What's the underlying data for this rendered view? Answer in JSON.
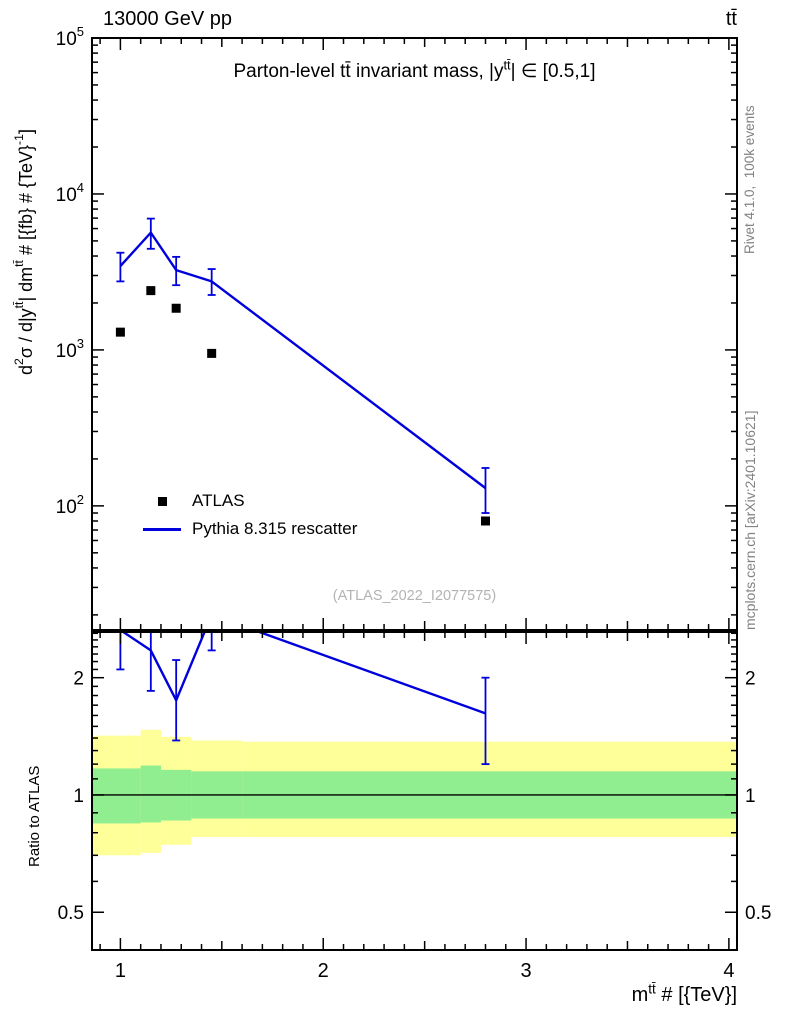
{
  "header": {
    "beam": "13000 GeV pp",
    "process": "tt̄"
  },
  "side_notes": {
    "top": "Rivet 4.1.0,  100k events",
    "bottom": "mcplots.cern.ch [arXiv:2401.10621]"
  },
  "watermark": "(ATLAS_2022_I2077575)",
  "legend": [
    {
      "label": "ATLAS",
      "marker": "square",
      "color": "#000000"
    },
    {
      "label": "Pythia 8.315 rescatter",
      "marker": "line",
      "color": "#0000dd"
    }
  ],
  "chart_data": [
    {
      "type": "line",
      "panel": "main",
      "title": "Parton-level tt̄ invariant mass, |y^{tt̄}| ∈ [0.5,1]",
      "xlabel": "m^{tt̄} # [{TeV}]",
      "ylabel": "d^{2}σ / d|y^{tt̄}| dm^{tt̄} # [{fb} # {TeV}^{-1}]",
      "xscale": "linear",
      "yscale": "log",
      "xlim": [
        0.86,
        4.04
      ],
      "ylim": [
        16,
        100000
      ],
      "xticks": [
        1,
        2,
        3,
        4
      ],
      "ytick_exponents": [
        2,
        3,
        4,
        5
      ],
      "x": [
        1.0,
        1.15,
        1.275,
        1.45,
        2.8
      ],
      "series": [
        {
          "name": "ATLAS",
          "type": "scatter",
          "marker": "square",
          "color": "#000000",
          "values": [
            1300,
            2400,
            1850,
            950,
            80
          ]
        },
        {
          "name": "Pythia 8.315 rescatter",
          "type": "line",
          "color": "#0000dd",
          "values": [
            3450,
            5650,
            3250,
            2750,
            130
          ],
          "err_low": [
            700,
            1200,
            650,
            500,
            40
          ],
          "err_high": [
            750,
            1300,
            700,
            550,
            45
          ]
        }
      ]
    },
    {
      "type": "ratio",
      "panel": "ratio",
      "ylabel": "Ratio to ATLAS",
      "yscale": "log",
      "ylim": [
        0.4,
        2.62
      ],
      "yticks": [
        0.5,
        1,
        2
      ],
      "reference_line": 1,
      "x": [
        1.0,
        1.15,
        1.275,
        1.45,
        2.8
      ],
      "values": [
        2.65,
        2.35,
        1.75,
        2.9,
        1.62
      ],
      "err_low": [
        0.55,
        0.5,
        0.37,
        0.55,
        0.42
      ],
      "err_high": [
        0.55,
        0.55,
        0.47,
        0.55,
        0.38
      ],
      "line_color": "#0000dd",
      "bands": {
        "edges": [
          0.86,
          1.1,
          1.2,
          1.35,
          1.6,
          4.04
        ],
        "outer_low": [
          0.7,
          0.71,
          0.745,
          0.78,
          0.78
        ],
        "outer_high": [
          1.42,
          1.47,
          1.41,
          1.38,
          1.37
        ],
        "inner_low": [
          0.845,
          0.85,
          0.86,
          0.87,
          0.87
        ],
        "inner_high": [
          1.17,
          1.19,
          1.16,
          1.15,
          1.15
        ],
        "outer_color": "#ffff99",
        "inner_color": "#90ee90"
      }
    }
  ]
}
